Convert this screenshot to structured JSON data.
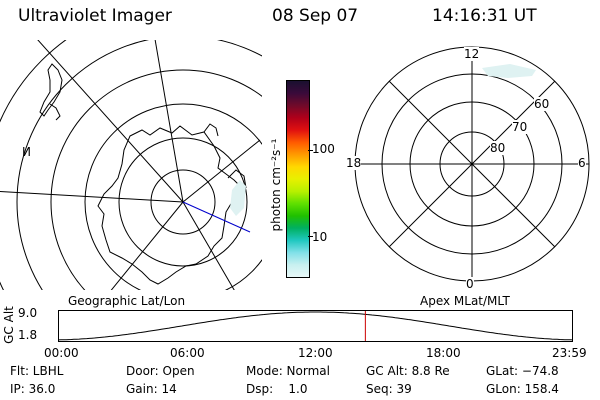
{
  "header": {
    "title": "Ultraviolet Imager",
    "date": "08 Sep 07",
    "time": "14:16:31 UT"
  },
  "colorbar": {
    "unit_label": "photon cm⁻²s⁻¹",
    "ticks": [
      "100",
      "10"
    ],
    "colors": [
      "#1a1030",
      "#3a0a3a",
      "#700a2a",
      "#b0001a",
      "#e01010",
      "#ff5a00",
      "#ff9a00",
      "#ffd800",
      "#e8f000",
      "#b8f000",
      "#60e000",
      "#20c000",
      "#00b060",
      "#20c8c0",
      "#80e0e8",
      "#c8f0f0",
      "#e8f8f8"
    ]
  },
  "left_map": {
    "label": "Geographic Lat/Lon",
    "side_mark": "И"
  },
  "right_map": {
    "label": "Apex MLat/MLT",
    "mlt_labels": {
      "top": "12",
      "left": "18",
      "right": "6",
      "bottom": "0"
    },
    "lat_labels": [
      "60",
      "70",
      "80"
    ]
  },
  "altitude_plot": {
    "axis_title": "GC Alt",
    "y_ticks": [
      "9.0",
      "1.8"
    ],
    "x_ticks": [
      "00:00",
      "06:00",
      "12:00",
      "18:00",
      "23:59"
    ],
    "current_time_fraction": 0.597,
    "marker_color": "#cc0000"
  },
  "info": {
    "filter": "Flt: LBHL",
    "door": "Door: Open",
    "mode": "Mode: Normal",
    "gc_alt": "GC Alt: 8.8 Re",
    "glat": "GLat: −74.8",
    "ip": "IP: 36.0",
    "gain": "Gain: 14",
    "dsp": "Dsp:    1.0",
    "seq": "Seq: 39",
    "glon": "GLon: 158.4"
  }
}
